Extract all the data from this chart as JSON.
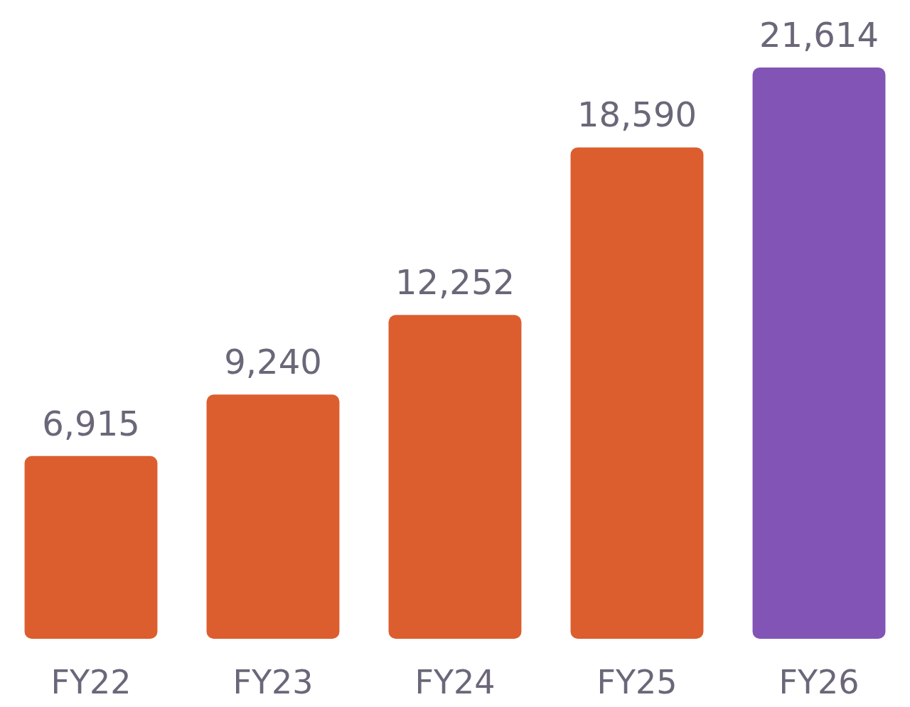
{
  "chart_data": {
    "type": "bar",
    "categories": [
      "FY22",
      "FY23",
      "FY24",
      "FY25",
      "FY26"
    ],
    "values": [
      6915,
      9240,
      12252,
      18590,
      21614
    ],
    "colors": [
      "#dc5e2e",
      "#dc5e2e",
      "#dc5e2e",
      "#dc5e2e",
      "#8254b6"
    ],
    "value_labels": [
      "6,915",
      "9,240",
      "12,252",
      "18,590",
      "21,614"
    ]
  }
}
